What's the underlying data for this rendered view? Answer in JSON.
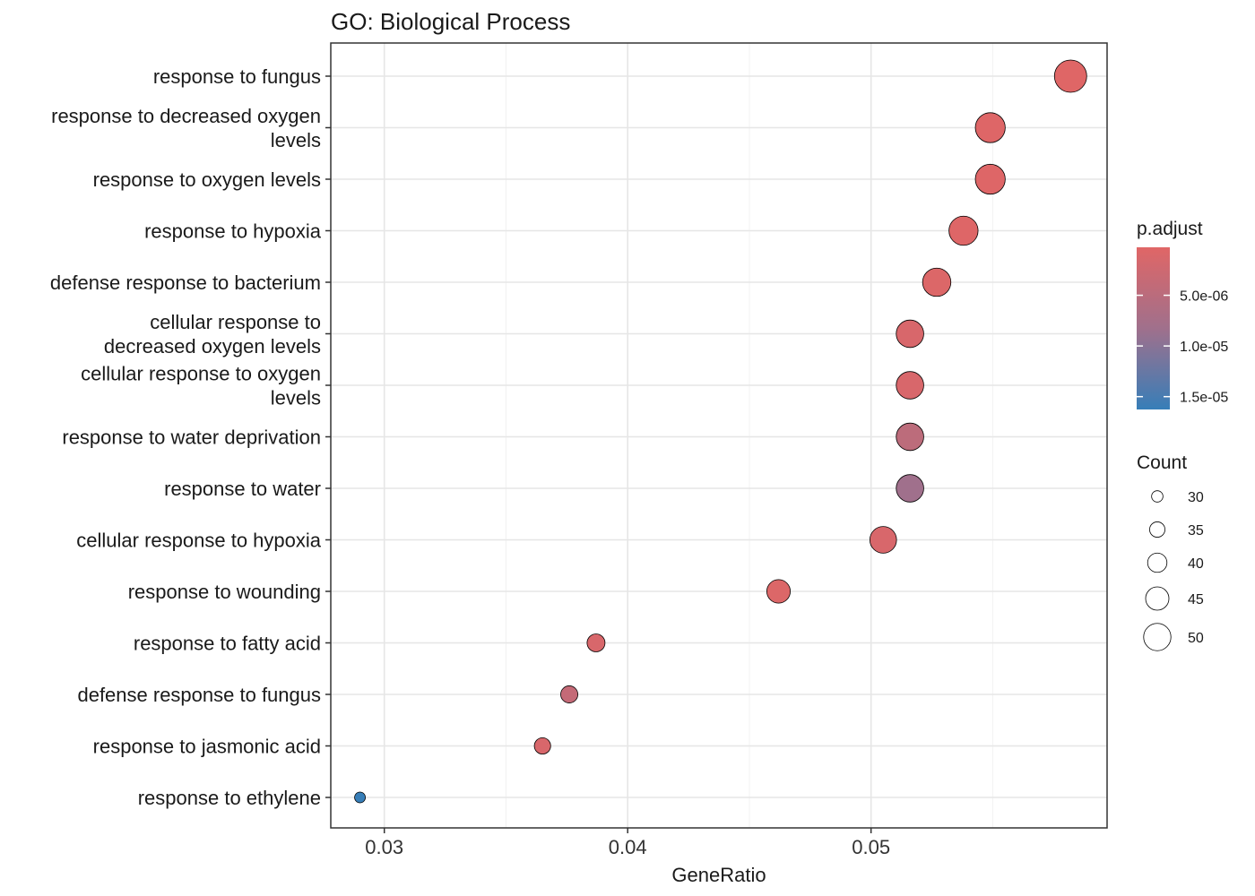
{
  "chart_data": {
    "type": "scatter",
    "title": "GO: Biological Process",
    "xlabel": "GeneRatio",
    "ylabel": "",
    "xlim": [
      0.0278,
      0.0597
    ],
    "x_ticks": [
      "0.03",
      "0.04",
      "0.05"
    ],
    "x_tick_values": [
      0.03,
      0.04,
      0.05
    ],
    "grid": true,
    "legend_position": "right",
    "categories": [
      "response to fungus",
      "response to decreased oxygen levels",
      "response to oxygen levels",
      "response to hypoxia",
      "defense response to bacterium",
      "cellular response to decreased oxygen levels",
      "cellular response to oxygen levels",
      "response to water deprivation",
      "response to water",
      "cellular response to hypoxia",
      "response to wounding",
      "response to fatty acid",
      "defense response to fungus",
      "response to jasmonic acid",
      "response to ethylene"
    ],
    "category_lines": [
      [
        "response to fungus"
      ],
      [
        "response to decreased oxygen",
        "levels"
      ],
      [
        "response to oxygen levels"
      ],
      [
        "response to hypoxia"
      ],
      [
        "defense response to bacterium"
      ],
      [
        "cellular response to",
        "decreased oxygen levels"
      ],
      [
        "cellular response to oxygen",
        "levels"
      ],
      [
        "response to water deprivation"
      ],
      [
        "response to water"
      ],
      [
        "cellular response to hypoxia"
      ],
      [
        "response to wounding"
      ],
      [
        "response to fatty acid"
      ],
      [
        "defense response to fungus"
      ],
      [
        "response to jasmonic acid"
      ],
      [
        "response to ethylene"
      ]
    ],
    "points": [
      {
        "category": "response to fungus",
        "gene_ratio": 0.0582,
        "count": 54,
        "p_adjust": 1e-07
      },
      {
        "category": "response to decreased oxygen levels",
        "gene_ratio": 0.0549,
        "count": 51,
        "p_adjust": 2e-07
      },
      {
        "category": "response to oxygen levels",
        "gene_ratio": 0.0549,
        "count": 51,
        "p_adjust": 2e-07
      },
      {
        "category": "response to hypoxia",
        "gene_ratio": 0.0538,
        "count": 50,
        "p_adjust": 2e-07
      },
      {
        "category": "defense response to bacterium",
        "gene_ratio": 0.0527,
        "count": 49,
        "p_adjust": 5e-07
      },
      {
        "category": "cellular response to decreased oxygen levels",
        "gene_ratio": 0.0516,
        "count": 48,
        "p_adjust": 1e-06
      },
      {
        "category": "cellular response to oxygen levels",
        "gene_ratio": 0.0516,
        "count": 48,
        "p_adjust": 1e-06
      },
      {
        "category": "response to water deprivation",
        "gene_ratio": 0.0516,
        "count": 48,
        "p_adjust": 4.5e-06
      },
      {
        "category": "response to water",
        "gene_ratio": 0.0516,
        "count": 48,
        "p_adjust": 8e-06
      },
      {
        "category": "cellular response to hypoxia",
        "gene_ratio": 0.0505,
        "count": 47,
        "p_adjust": 1e-06
      },
      {
        "category": "response to wounding",
        "gene_ratio": 0.0462,
        "count": 43,
        "p_adjust": 5e-07
      },
      {
        "category": "response to fatty acid",
        "gene_ratio": 0.0387,
        "count": 36,
        "p_adjust": 1e-06
      },
      {
        "category": "defense response to fungus",
        "gene_ratio": 0.0376,
        "count": 35,
        "p_adjust": 3.5e-06
      },
      {
        "category": "response to jasmonic acid",
        "gene_ratio": 0.0365,
        "count": 34,
        "p_adjust": 1e-06
      },
      {
        "category": "response to ethylene",
        "gene_ratio": 0.029,
        "count": 27,
        "p_adjust": 1.6e-05
      }
    ],
    "color_legend": {
      "title": "p.adjust",
      "labels": [
        "5.0e-06",
        "1.0e-05",
        "1.5e-05"
      ],
      "values": [
        5e-06,
        1e-05,
        1.5e-05
      ],
      "range": [
        0.0,
        1.6e-05
      ],
      "low_color": "#e06666",
      "high_color": "#377eb8"
    },
    "size_legend": {
      "title": "Count",
      "labels": [
        "30",
        "35",
        "40",
        "45",
        "50"
      ],
      "values": [
        30,
        35,
        40,
        45,
        50
      ]
    }
  }
}
